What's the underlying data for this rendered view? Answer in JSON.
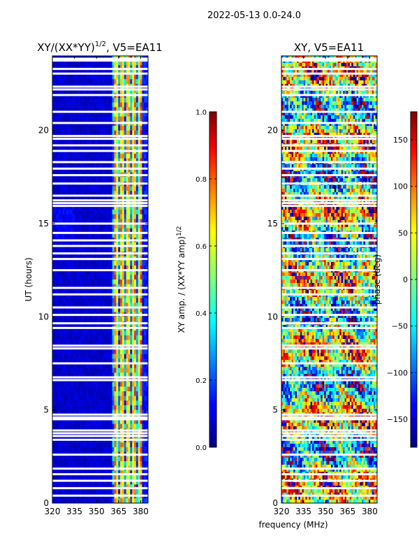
{
  "suptitle": "2022-05-13 0.0-24.0",
  "xlabel_common": "frequency (MHz)",
  "colors": {
    "axis": "#000000",
    "masked": "#ffffff",
    "background": "#ffffff"
  },
  "chart_data": [
    {
      "type": "heatmap",
      "title_main": "XY/(XX*YY)",
      "title_exp": "1/2",
      "title_tail": ", V5=EA11",
      "ylabel": "UT (hours)",
      "xlim": [
        320,
        385
      ],
      "ylim": [
        0,
        24
      ],
      "xticks": [
        320,
        335,
        350,
        365,
        380
      ],
      "yticks": [
        0,
        5,
        10,
        15,
        20
      ],
      "colorscale": "jet",
      "colorbar": {
        "label_main": "XY amp. / (XX*YY amp)",
        "label_exp": "1/2",
        "range": [
          0.0,
          1.0
        ],
        "ticks": [
          "0.0",
          "0.2",
          "0.4",
          "0.6",
          "0.8",
          "1.0"
        ],
        "tick_values": [
          0.0,
          0.2,
          0.4,
          0.6,
          0.8,
          1.0
        ]
      },
      "description_values": "normalized amplitude near 0.05 for 320-361 MHz; bright stripes 0.3-0.8 for 361-380 MHz"
    },
    {
      "type": "heatmap",
      "title": "XY, V5=EA11",
      "xlim": [
        320,
        385
      ],
      "ylim": [
        0,
        24
      ],
      "xticks": [
        320,
        335,
        350,
        365,
        380
      ],
      "yticks": [
        0,
        5,
        10,
        15,
        20
      ],
      "colorscale": "jet",
      "colorbar": {
        "label": "phase (deg)",
        "range": [
          -180,
          180
        ],
        "ticks": [
          "−150",
          "−100",
          "−50",
          "0",
          "50",
          "100",
          "150"
        ],
        "tick_values": [
          -150,
          -100,
          -50,
          0,
          50,
          100,
          150
        ]
      },
      "description_values": "phase fluctuating between -180 and 180 deg across all frequencies"
    }
  ],
  "masked_hours": [
    0.4,
    0.8,
    1.2,
    1.55,
    1.85,
    2.6,
    3.4,
    3.6,
    3.75,
    3.9,
    4.5,
    4.6,
    4.75,
    6.6,
    6.75,
    7.5,
    8.3,
    8.45,
    9.4,
    9.65,
    10.1,
    10.5,
    11.2,
    11.55,
    12.5,
    13.1,
    13.4,
    13.8,
    14.1,
    14.5,
    15.0,
    15.95,
    16.1,
    16.25,
    16.5,
    17.15,
    17.6,
    17.95,
    18.3,
    18.9,
    19.2,
    19.55,
    19.7,
    20.4,
    21.0,
    21.9,
    22.2,
    22.35,
    23.05,
    23.3,
    23.75,
    23.85
  ]
}
